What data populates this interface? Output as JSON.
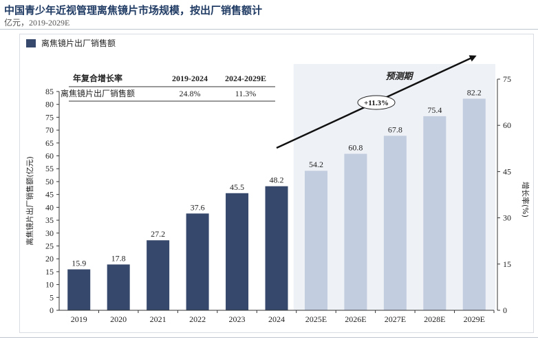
{
  "header": {
    "title": "中国青少年近视管理离焦镜片市场规模，按出厂销售额计",
    "subtitle": "亿元，2019-2029E"
  },
  "colors": {
    "historical": "#36486b",
    "forecast": "#c3cde0",
    "arrow": "#111111",
    "title": "#1f3a63"
  },
  "chart_data": {
    "type": "bar",
    "categories": [
      "2019",
      "2020",
      "2021",
      "2022",
      "2023",
      "2024",
      "2025E",
      "2026E",
      "2027E",
      "2028E",
      "2029E"
    ],
    "values": [
      15.9,
      17.8,
      27.2,
      37.6,
      45.5,
      48.2,
      54.2,
      60.8,
      67.8,
      75.4,
      82.2
    ],
    "value_labels": [
      "15.9",
      "17.8",
      "27.2",
      "37.6",
      "45.5",
      "48.2",
      "54.2",
      "60.8",
      "67.8",
      "75.4",
      "82.2"
    ],
    "forecast_from_index": 6,
    "legend": {
      "label": "离焦镜片出厂销售额",
      "position": "top-left"
    },
    "ylabel": "离焦镜片出厂销售额(亿元)",
    "ylim": [
      0,
      85
    ],
    "yticks": [
      0,
      5,
      10,
      15,
      20,
      25,
      30,
      35,
      40,
      45,
      50,
      55,
      60,
      65,
      70,
      75,
      80,
      85
    ],
    "y2label": "增长率(%)",
    "y2lim": [
      0,
      75
    ],
    "y2ticks": [
      0,
      15,
      30,
      45,
      60,
      75
    ],
    "forecast_label": "预测期",
    "trend_label": "+11.3%",
    "cagr_table": {
      "headers": [
        "年复合增长率",
        "2019-2024",
        "2024-2029E"
      ],
      "row": [
        "离焦镜片出厂销售额",
        "24.8%",
        "11.3%"
      ]
    }
  }
}
